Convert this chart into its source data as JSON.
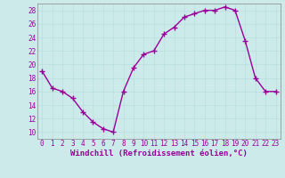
{
  "x": [
    0,
    1,
    2,
    3,
    4,
    5,
    6,
    7,
    8,
    9,
    10,
    11,
    12,
    13,
    14,
    15,
    16,
    17,
    18,
    19,
    20,
    21,
    22,
    23
  ],
  "y": [
    19,
    16.5,
    16,
    15,
    13,
    11.5,
    10.5,
    10,
    16,
    19.5,
    21.5,
    22,
    24.5,
    25.5,
    27,
    27.5,
    28,
    28,
    28.5,
    28,
    23.5,
    18,
    16,
    16
  ],
  "line_color": "#990099",
  "marker": "+",
  "marker_size": 4,
  "linewidth": 1.0,
  "xlabel": "Windchill (Refroidissement éolien,°C)",
  "xlabel_fontsize": 6.5,
  "ylim": [
    9,
    29
  ],
  "xlim": [
    -0.5,
    23.5
  ],
  "yticks": [
    10,
    12,
    14,
    16,
    18,
    20,
    22,
    24,
    26,
    28
  ],
  "xtick_labels": [
    "0",
    "1",
    "2",
    "3",
    "4",
    "5",
    "6",
    "7",
    "8",
    "9",
    "10",
    "11",
    "12",
    "13",
    "14",
    "15",
    "16",
    "17",
    "18",
    "19",
    "20",
    "21",
    "22",
    "23"
  ],
  "tick_fontsize": 5.5,
  "grid_color": "#b8dede",
  "bg_color": "#cceaea",
  "fig_bg": "#cceaea",
  "spine_color": "#888888",
  "label_color": "#990099"
}
